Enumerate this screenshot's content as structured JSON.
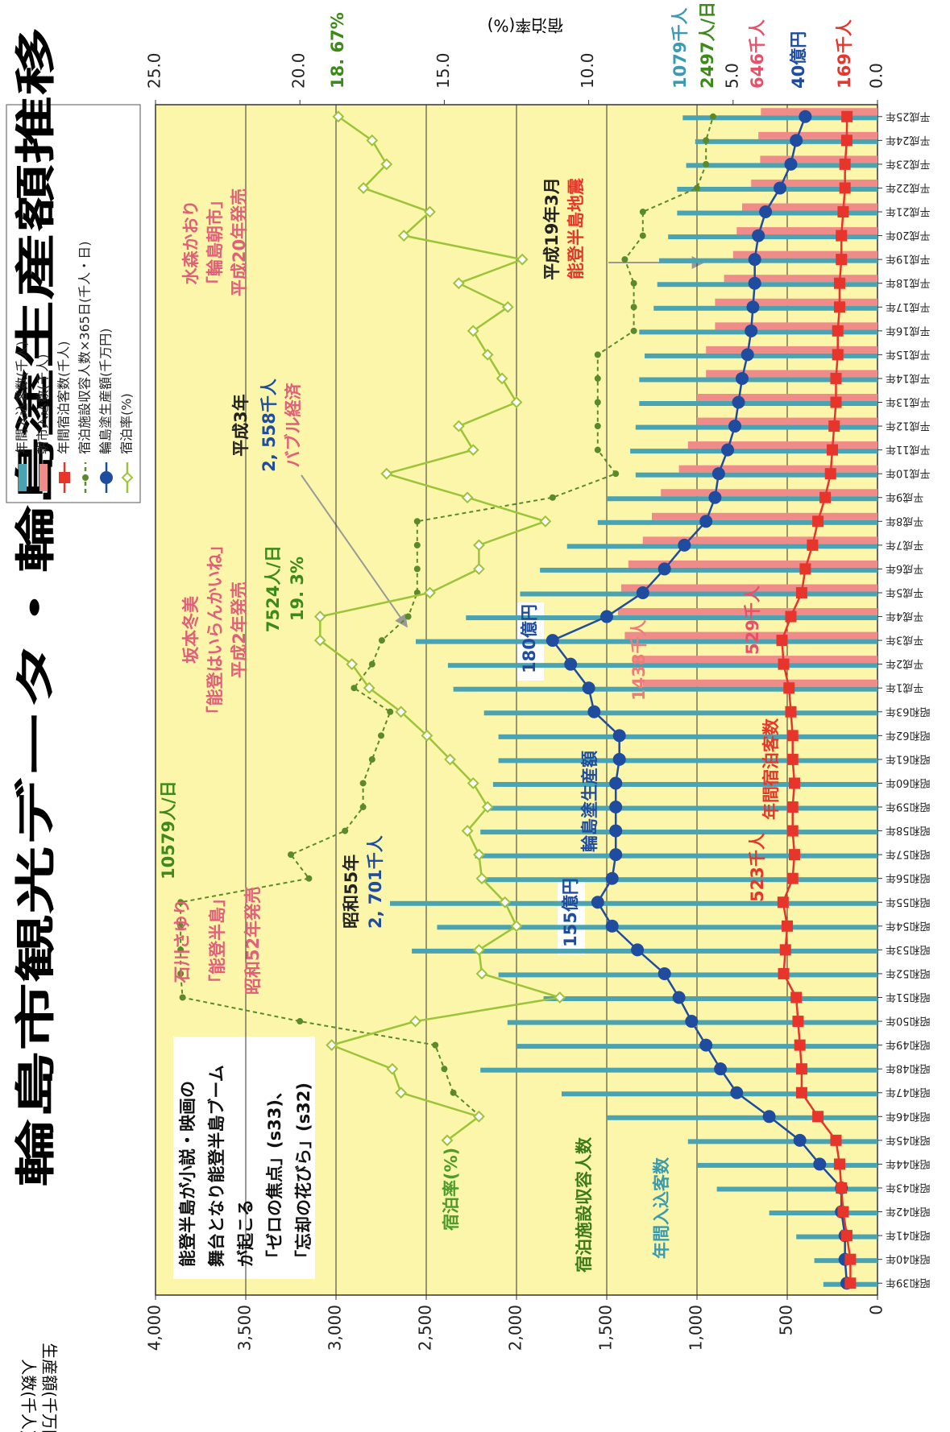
{
  "chart_data": {
    "type": "bar-line",
    "title": "輪島市観光データ・輪島塗生産額推移",
    "y_label": [
      "人数(千人)",
      "生産額(千万円)"
    ],
    "y2_label": "宿泊率(%)",
    "categories": [
      "昭和39年",
      "昭和40年",
      "昭和41年",
      "昭和42年",
      "昭和43年",
      "昭和44年",
      "昭和45年",
      "昭和46年",
      "昭和47年",
      "昭和48年",
      "昭和49年",
      "昭和50年",
      "昭和51年",
      "昭和52年",
      "昭和53年",
      "昭和54年",
      "昭和55年",
      "昭和56年",
      "昭和57年",
      "昭和58年",
      "昭和59年",
      "昭和60年",
      "昭和61年",
      "昭和62年",
      "昭和63年",
      "平成1年",
      "平成2年",
      "平成3年",
      "平成4年",
      "平成5年",
      "平成6年",
      "平成7年",
      "平成8年",
      "平成9年",
      "平成10年",
      "平成11年",
      "平成12年",
      "平成13年",
      "平成14年",
      "平成15年",
      "平成16年",
      "平成17年",
      "平成18年",
      "平成19年",
      "平成20年",
      "平成21年",
      "平成22年",
      "平成23年",
      "平成24年",
      "平成25年"
    ],
    "ylim": [
      0,
      4000
    ],
    "yticks": [
      0,
      500,
      {
        "value": 1000,
        "label": "1,000"
      },
      {
        "value": 1500,
        "label": "1,500"
      },
      {
        "value": 2000,
        "label": "2,000"
      },
      {
        "value": 2500,
        "label": "2,500"
      },
      {
        "value": 3000,
        "label": "3,000"
      },
      {
        "value": 3500,
        "label": "3,500"
      },
      {
        "value": 4000,
        "label": "4,000"
      }
    ],
    "y2lim": [
      0,
      25
    ],
    "y2ticks": [
      {
        "value": 0,
        "label": "0.0"
      },
      {
        "value": 5,
        "label": "5.0"
      },
      {
        "value": 10,
        "label": "10.0"
      },
      {
        "value": 15,
        "label": "15.0"
      },
      {
        "value": 20,
        "label": "20.0"
      },
      {
        "value": 25,
        "label": "25.0"
      }
    ],
    "grid": true,
    "series": [
      {
        "name": "年間入込客数(千人)",
        "type": "bar",
        "color": "#4aa3b3",
        "values": [
          300,
          350,
          450,
          600,
          890,
          1000,
          1050,
          1500,
          1750,
          2200,
          2000,
          2050,
          1850,
          2100,
          2580,
          2440,
          2701,
          2200,
          2230,
          2200,
          2150,
          2130,
          2100,
          2100,
          2180,
          2350,
          2380,
          2558,
          2280,
          1980,
          1870,
          1720,
          1550,
          1500,
          1340,
          1370,
          1340,
          1320,
          1320,
          1290,
          1320,
          1240,
          1220,
          1210,
          1160,
          1110,
          1110,
          1060,
          1010,
          1079
        ]
      },
      {
        "name": "朝市入込数(千人)",
        "type": "bar",
        "color": "#ef8c8a",
        "values": [
          null,
          null,
          null,
          null,
          null,
          null,
          null,
          null,
          null,
          null,
          null,
          null,
          null,
          null,
          null,
          null,
          null,
          null,
          null,
          null,
          null,
          null,
          null,
          null,
          null,
          1300,
          1350,
          1400,
          1438,
          1420,
          1380,
          1300,
          1250,
          1200,
          1100,
          1050,
          1000,
          1000,
          950,
          950,
          900,
          900,
          850,
          800,
          780,
          750,
          700,
          650,
          660,
          646
        ]
      },
      {
        "name": "年間宿泊客数(千人)",
        "type": "line",
        "marker": "square",
        "color": "#e8352b",
        "values": [
          150,
          150,
          170,
          190,
          200,
          210,
          230,
          330,
          420,
          420,
          430,
          440,
          450,
          520,
          510,
          500,
          523,
          470,
          460,
          470,
          470,
          460,
          470,
          470,
          480,
          490,
          520,
          529,
          480,
          420,
          400,
          360,
          330,
          290,
          260,
          250,
          240,
          230,
          230,
          220,
          220,
          210,
          210,
          200,
          200,
          190,
          180,
          180,
          170,
          169
        ]
      },
      {
        "name": "宿泊施設収容人数×365日(千人・日)",
        "type": "line",
        "marker": "dot",
        "dashed": true,
        "color": "#5a8a2a",
        "values": [
          null,
          null,
          null,
          null,
          null,
          null,
          null,
          2200,
          2350,
          2400,
          2450,
          3200,
          3850,
          3861,
          3861,
          3861,
          3861,
          3150,
          3250,
          2950,
          2850,
          2850,
          2800,
          2750,
          2700,
          2900,
          2800,
          2746,
          2600,
          2550,
          2550,
          2550,
          2550,
          1800,
          1450,
          1550,
          1550,
          1550,
          1550,
          1550,
          1350,
          1350,
          1350,
          1400,
          1300,
          1300,
          1000,
          950,
          950,
          911
        ]
      },
      {
        "name": "輪島塗生産額(千万円)",
        "type": "line",
        "marker": "circle",
        "color": "#1f4c9e",
        "values": [
          170,
          180,
          180,
          200,
          200,
          320,
          430,
          600,
          780,
          870,
          950,
          1030,
          1100,
          1180,
          1330,
          1470,
          1550,
          1470,
          1450,
          1450,
          1450,
          1450,
          1430,
          1430,
          1570,
          1600,
          1700,
          1800,
          1500,
          1300,
          1180,
          1070,
          950,
          900,
          880,
          830,
          790,
          770,
          750,
          720,
          700,
          690,
          680,
          680,
          660,
          620,
          540,
          480,
          450,
          400
        ]
      },
      {
        "name": "宿泊率(%)",
        "type": "line",
        "marker": "diamond",
        "axis": "y2",
        "color": "#9cc43a",
        "values": [
          null,
          null,
          null,
          null,
          null,
          null,
          14.9,
          13.8,
          16.5,
          16.8,
          18.9,
          16.0,
          11.0,
          13.7,
          13.8,
          12.5,
          12.9,
          13.7,
          13.8,
          14.2,
          13.5,
          14.0,
          14.8,
          15.6,
          16.5,
          17.6,
          18.2,
          19.3,
          19.3,
          15.5,
          13.8,
          13.8,
          11.5,
          14.2,
          17.0,
          14.0,
          14.5,
          12.5,
          13.0,
          13.5,
          14.0,
          12.8,
          14.5,
          12.3,
          16.4,
          15.5,
          17.8,
          17.0,
          17.5,
          18.67
        ]
      }
    ],
    "annotations": [
      {
        "lines": [
          "能登半島が小説・映画の",
          "舞台となり能登半島ブーム",
          "が起こる",
          "「ゼロの焦点」(s33)、",
          "「忘却の花びら」(s32)"
        ],
        "color": "#111111"
      },
      {
        "lines": [
          "宿泊率(%)"
        ],
        "color": "#4e9a2a"
      },
      {
        "lines": [
          "宿泊施設収容人数"
        ],
        "color": "#3d7a1a"
      },
      {
        "lines": [
          "年間入込客数"
        ],
        "color": "#3a9ab0"
      },
      {
        "lines": [
          "10579人/日"
        ],
        "color": "#3d8a1a"
      },
      {
        "lines": [
          "石川さゆり",
          "「能登半島」",
          "昭和52年発売"
        ],
        "color": "#e0607a"
      },
      {
        "lines": [
          "昭和55年"
        ],
        "color": "#222222"
      },
      {
        "lines": [
          "2, 701千人"
        ],
        "color": "#1f4c9e"
      },
      {
        "lines": [
          "155億円"
        ],
        "color": "#1f4c9e"
      },
      {
        "lines": [
          "輪島塗生産額"
        ],
        "color": "#1f4c9e"
      },
      {
        "lines": [
          "523千人"
        ],
        "color": "#e8352b"
      },
      {
        "lines": [
          "年間宿泊客数"
        ],
        "color": "#e8352b"
      },
      {
        "lines": [
          "180億円"
        ],
        "color": "#1f4c9e"
      },
      {
        "lines": [
          "1438千人"
        ],
        "color": "#ef7c7a"
      },
      {
        "lines": [
          "529千人"
        ],
        "color": "#e8506a"
      },
      {
        "lines": [
          "坂本冬美",
          "「能登はいらんかいね」",
          "平成2年発売"
        ],
        "color": "#e0607a"
      },
      {
        "lines": [
          "7524人/日",
          "19. 3%"
        ],
        "color": "#3d8a1a"
      },
      {
        "lines": [
          "平成3年"
        ],
        "color": "#222222"
      },
      {
        "lines": [
          "2, 558千人"
        ],
        "color": "#1f4c9e"
      },
      {
        "lines": [
          "バブル経済"
        ],
        "color": "#e0607a"
      },
      {
        "lines": [
          "水森かおり",
          "「輪島朝市」",
          "平成20年発売"
        ],
        "color": "#e0607a"
      },
      {
        "lines": [
          "平成19年3月"
        ],
        "color": "#222222"
      },
      {
        "lines": [
          "能登半島地震"
        ],
        "color": "#e8352b"
      },
      {
        "lines": [
          "1079千人"
        ],
        "color": "#3a9ab0"
      },
      {
        "lines": [
          "2497人/日"
        ],
        "color": "#3d8a1a"
      },
      {
        "lines": [
          "18. 67%"
        ],
        "color": "#3d8a1a"
      },
      {
        "lines": [
          "646千人"
        ],
        "color": "#e8506a"
      },
      {
        "lines": [
          "40億円"
        ],
        "color": "#1f4c9e"
      },
      {
        "lines": [
          "169千人"
        ],
        "color": "#e8352b"
      }
    ]
  }
}
